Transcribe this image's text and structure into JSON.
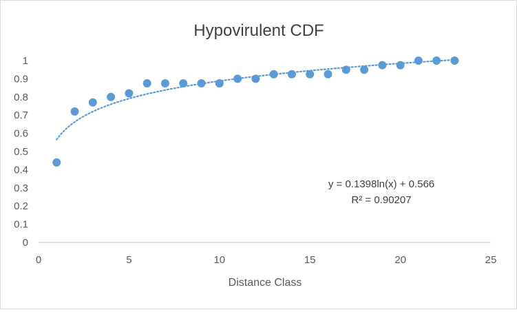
{
  "chart_data": {
    "type": "scatter",
    "title": "Hypovirulent CDF",
    "xlabel": "Distance Class",
    "ylabel": "",
    "xlim": [
      0,
      25
    ],
    "ylim": [
      0,
      1
    ],
    "x_ticks": [
      "0",
      "5",
      "10",
      "15",
      "20",
      "25"
    ],
    "y_ticks": [
      "0",
      "0.1",
      "0.2",
      "0.3",
      "0.4",
      "0.5",
      "0.6",
      "0.7",
      "0.8",
      "0.9",
      "1"
    ],
    "grid": false,
    "series": [
      {
        "name": "Hypovirulent CDF",
        "color": "#5b9bd5",
        "x": [
          1,
          2,
          3,
          4,
          5,
          6,
          7,
          8,
          9,
          10,
          11,
          12,
          13,
          14,
          15,
          16,
          17,
          18,
          19,
          20,
          21,
          22,
          23
        ],
        "y": [
          0.44,
          0.72,
          0.77,
          0.8,
          0.82,
          0.875,
          0.875,
          0.875,
          0.875,
          0.875,
          0.9,
          0.9,
          0.925,
          0.925,
          0.925,
          0.925,
          0.95,
          0.95,
          0.975,
          0.975,
          1.0,
          1.0,
          1.0
        ]
      }
    ],
    "trendline": {
      "type": "logarithmic",
      "a": 0.1398,
      "b": 0.566,
      "x_range": [
        1,
        23
      ],
      "color": "#5b9bd5",
      "equation_label": "y = 0.1398ln(x) + 0.566",
      "r2_label": "R² = 0.90207"
    }
  }
}
